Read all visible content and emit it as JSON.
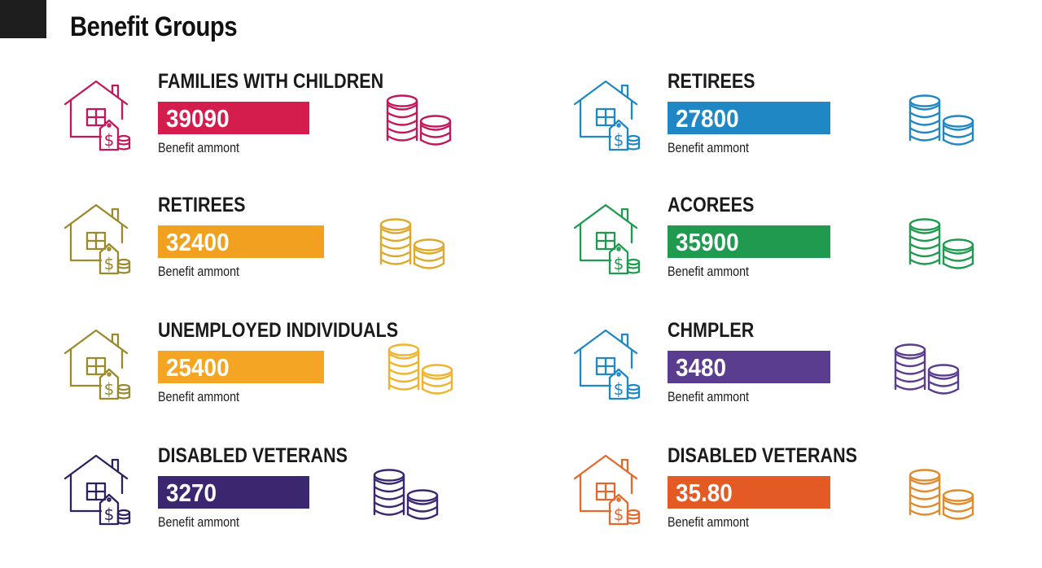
{
  "header": {
    "title": "Benefit Groups"
  },
  "groups": [
    {
      "title": "FAMILIES WITH CHILDREN",
      "value": "39090",
      "label": "Benefit ammont",
      "color": "#d41d4d",
      "icon": "house-dollar-icon",
      "coin_icon": "coin-stacks-icon"
    },
    {
      "title": "RETIREES",
      "value": "27800",
      "label": "Benefit ammont",
      "color": "#1f87c4",
      "icon": "house-dollar-icon",
      "coin_icon": "coin-stacks-icon"
    },
    {
      "title": "RETIREES",
      "value": "32400",
      "label": "Benefit ammont",
      "color": "#f2a01f",
      "icon": "house-dollar-icon",
      "coin_icon": "coin-stacks-icon"
    },
    {
      "title": "ACOREES",
      "value": "35900",
      "label": "Benefit ammont",
      "color": "#1f9a4e",
      "icon": "house-dollar-icon",
      "coin_icon": "coin-stacks-icon"
    },
    {
      "title": "UNEMPLOYED INDIVIDUALS",
      "value": "25400",
      "label": "Benefit ammont",
      "color": "#f4a523",
      "icon": "house-dollar-icon",
      "coin_icon": "coin-stacks-icon"
    },
    {
      "title": "CHMPLER",
      "value": "3480",
      "label": "Benefit ammont",
      "color": "#5a3d8f",
      "icon": "house-dollar-icon",
      "coin_icon": "coin-stacks-icon"
    },
    {
      "title": "DISABLED VETERANS",
      "value": "3270",
      "label": "Benefit ammont",
      "color": "#3b2770",
      "icon": "house-dollar-icon",
      "coin_icon": "coin-stacks-icon"
    },
    {
      "title": "DISABLED VETERANS",
      "value": "35.80",
      "label": "Benefit ammont",
      "color": "#e45a24",
      "icon": "house-dollar-icon",
      "coin_icon": "coin-stacks-icon"
    }
  ],
  "icon_colors": {
    "house": [
      "#c2185b",
      "#1f87c4",
      "#9a8a2a",
      "#1f9a4e",
      "#9a8a2a",
      "#1f87c4",
      "#2e1f5e",
      "#e06a2c"
    ],
    "coins": [
      "#c2185b",
      "#1f87c4",
      "#e0a82a",
      "#1f9a4e",
      "#f0b32c",
      "#5a3d8f",
      "#3b2770",
      "#e08a2c"
    ]
  }
}
